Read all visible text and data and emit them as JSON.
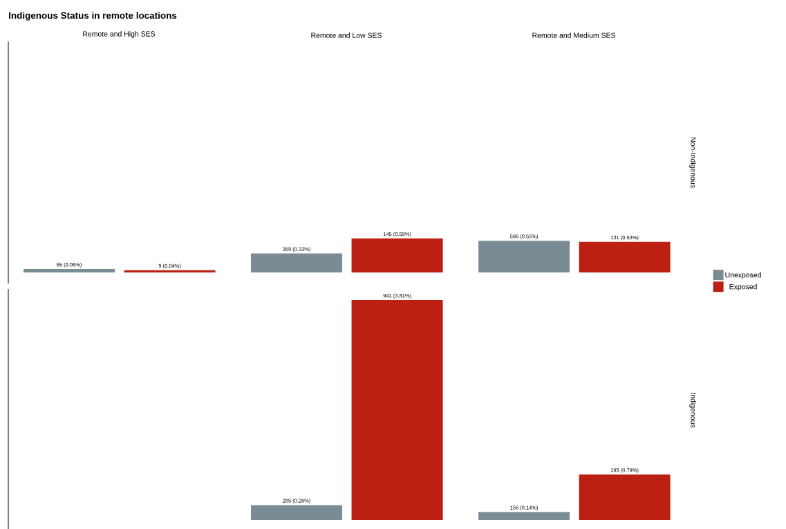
{
  "chart_data": [
    {
      "type": "bar",
      "title": "Indigenous Status in remote locations",
      "subtitle": "Remote and High SES",
      "categories": [
        null
      ],
      "series": [
        {
          "color": "#7a8c93",
          "values": [
            0.06
          ],
          "value_labels": [
            "65 (0.06%)"
          ]
        },
        {
          "color": "#bb2013",
          "values": [
            0.04
          ],
          "value_labels": [
            "9 (0.04%)"
          ]
        }
      ]
    },
    {
      "type": "bar",
      "subtitle": "Remote and Low SES",
      "categories": [
        null
      ],
      "series": [
        {
          "color": "#7a8c93",
          "values": [
            0.33
          ],
          "value_labels": [
            "359 (0.33%)"
          ]
        },
        {
          "color": "#bb2013",
          "values": [
            0.59
          ],
          "value_labels": [
            "145 (0.59%)"
          ]
        }
      ]
    },
    {
      "type": "bar",
      "subtitle": "Remote and Medium SES",
      "y2label": "Non-Indigenous",
      "legend": "right",
      "categories": [
        null
      ],
      "series": [
        {
          "name": "Unexposed",
          "color": "#7a8c93",
          "values": [
            0.55
          ],
          "value_labels": [
            "596 (0.55%)"
          ]
        },
        {
          "name": "Exposed",
          "color": "#bb2013",
          "values": [
            0.53
          ],
          "value_labels": [
            "131 (0.53%)"
          ]
        }
      ]
    },
    {
      "type": "other"
    },
    {
      "type": "bar",
      "categories": [
        null
      ],
      "series": [
        {
          "color": "#7a8c93",
          "values": [
            0.26
          ],
          "value_labels": [
            "285 (0.26%)"
          ]
        },
        {
          "color": "#bb2013",
          "values": [
            3.81
          ],
          "value_labels": [
            "941 (3.81%)"
          ]
        }
      ]
    },
    {
      "type": "bar",
      "y2label": "Indigenous",
      "categories": [
        null
      ],
      "series": [
        {
          "color": "#7a8c93",
          "values": [
            0.14
          ],
          "value_labels": [
            "156 (0.14%)"
          ]
        },
        {
          "color": "#bb2013",
          "values": [
            0.79
          ],
          "value_labels": [
            "195 (0.79%)"
          ]
        }
      ]
    }
  ]
}
